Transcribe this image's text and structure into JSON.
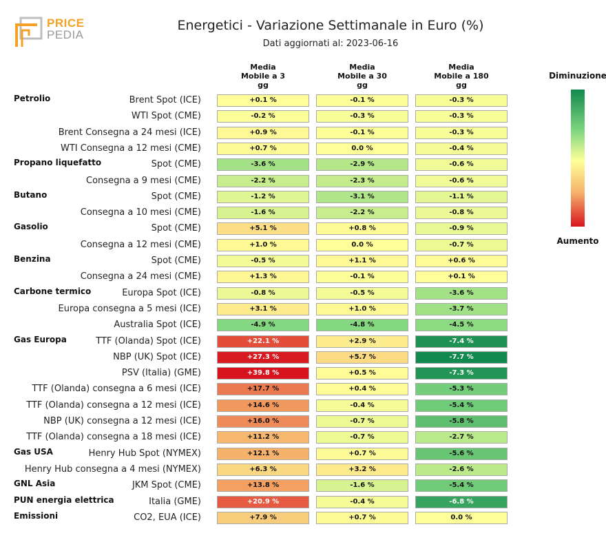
{
  "header": {
    "logo_line1": "PRICE",
    "logo_line2": "PEDIA",
    "title": "Energetici - Variazione Settimanale in Euro (%)",
    "subtitle": "Dati aggiornati al: 2023-06-16"
  },
  "legend": {
    "top_label": "Diminuzione",
    "bottom_label": "Aumento"
  },
  "chart_data": {
    "type": "table",
    "title": "Energetici - Variazione Settimanale in Euro (%)",
    "columns": [
      "Media\nMobile a 3\ngg",
      "Media\nMobile a 30\ngg",
      "Media\nMobile a 180\ngg"
    ],
    "color_scale": {
      "negative_max": "#12894e",
      "neutral": "#ffff99",
      "positive_max": "#d7141e",
      "min": -8,
      "max": 40
    },
    "rows": [
      {
        "group": "Petrolio",
        "label": "Brent Spot (ICE)",
        "values": [
          0.1,
          -0.1,
          -0.3
        ],
        "texts": [
          "+0.1 %",
          "-0.1 %",
          "-0.3 %"
        ]
      },
      {
        "group": "",
        "label": "WTI Spot (CME)",
        "values": [
          -0.2,
          -0.3,
          -0.3
        ],
        "texts": [
          "-0.2 %",
          "-0.3 %",
          "-0.3 %"
        ]
      },
      {
        "group": "",
        "label": "Brent Consegna a 24 mesi (ICE)",
        "values": [
          0.9,
          -0.1,
          -0.3
        ],
        "texts": [
          "+0.9 %",
          "-0.1 %",
          "-0.3 %"
        ]
      },
      {
        "group": "",
        "label": "WTI Consegna a 12 mesi (CME)",
        "values": [
          0.7,
          0.0,
          -0.4
        ],
        "texts": [
          "+0.7 %",
          "0.0 %",
          "-0.4 %"
        ]
      },
      {
        "group": "Propano liquefatto",
        "label": "Spot (CME)",
        "values": [
          -3.6,
          -2.9,
          -0.6
        ],
        "texts": [
          "-3.6 %",
          "-2.9 %",
          "-0.6 %"
        ]
      },
      {
        "group": "",
        "label": "Consegna a 9 mesi (CME)",
        "values": [
          -2.2,
          -2.3,
          -0.6
        ],
        "texts": [
          "-2.2 %",
          "-2.3 %",
          "-0.6 %"
        ]
      },
      {
        "group": "Butano",
        "label": "Spot (CME)",
        "values": [
          -1.2,
          -3.1,
          -1.1
        ],
        "texts": [
          "-1.2 %",
          "-3.1 %",
          "-1.1 %"
        ]
      },
      {
        "group": "",
        "label": "Consegna a 10 mesi (CME)",
        "values": [
          -1.6,
          -2.2,
          -0.8
        ],
        "texts": [
          "-1.6 %",
          "-2.2 %",
          "-0.8 %"
        ]
      },
      {
        "group": "Gasolio",
        "label": "Spot (CME)",
        "values": [
          5.1,
          0.8,
          -0.9
        ],
        "texts": [
          "+5.1 %",
          "+0.8 %",
          "-0.9 %"
        ]
      },
      {
        "group": "",
        "label": "Consegna a 12 mesi (CME)",
        "values": [
          1.0,
          0.0,
          -0.7
        ],
        "texts": [
          "+1.0 %",
          "0.0 %",
          "-0.7 %"
        ]
      },
      {
        "group": "Benzina",
        "label": "Spot (CME)",
        "values": [
          -0.5,
          1.1,
          0.6
        ],
        "texts": [
          "-0.5 %",
          "+1.1 %",
          "+0.6 %"
        ]
      },
      {
        "group": "",
        "label": "Consegna a 24 mesi (CME)",
        "values": [
          1.3,
          -0.1,
          0.1
        ],
        "texts": [
          "+1.3 %",
          "-0.1 %",
          "+0.1 %"
        ]
      },
      {
        "group": "Carbone termico",
        "label": "Europa Spot (ICE)",
        "values": [
          -0.8,
          -0.5,
          -3.6
        ],
        "texts": [
          "-0.8 %",
          "-0.5 %",
          "-3.6 %"
        ]
      },
      {
        "group": "",
        "label": "Europa consegna a 5 mesi (ICE)",
        "values": [
          3.1,
          1.0,
          -3.7
        ],
        "texts": [
          "+3.1 %",
          "+1.0 %",
          "-3.7 %"
        ]
      },
      {
        "group": "",
        "label": "Australia Spot (ICE)",
        "values": [
          -4.9,
          -4.8,
          -4.5
        ],
        "texts": [
          "-4.9 %",
          "-4.8 %",
          "-4.5 %"
        ]
      },
      {
        "group": "Gas Europa",
        "label": "TTF (Olanda) Spot (ICE)",
        "values": [
          22.1,
          2.9,
          -7.4
        ],
        "texts": [
          "+22.1 %",
          "+2.9 %",
          "-7.4 %"
        ]
      },
      {
        "group": "",
        "label": "NBP (UK) Spot (ICE)",
        "values": [
          27.3,
          5.7,
          -7.7
        ],
        "texts": [
          "+27.3 %",
          "+5.7 %",
          "-7.7 %"
        ]
      },
      {
        "group": "",
        "label": "PSV (Italia) (GME)",
        "values": [
          39.8,
          0.5,
          -7.3
        ],
        "texts": [
          "+39.8 %",
          "+0.5 %",
          "-7.3 %"
        ]
      },
      {
        "group": "",
        "label": "TTF (Olanda) consegna a 6 mesi (ICE)",
        "values": [
          17.7,
          0.4,
          -5.3
        ],
        "texts": [
          "+17.7 %",
          "+0.4 %",
          "-5.3 %"
        ]
      },
      {
        "group": "",
        "label": "TTF (Olanda) consegna a 12 mesi (ICE)",
        "values": [
          14.6,
          -0.4,
          -5.4
        ],
        "texts": [
          "+14.6 %",
          "-0.4 %",
          "-5.4 %"
        ]
      },
      {
        "group": "",
        "label": "NBP (UK) consegna a 12 mesi (ICE)",
        "values": [
          16.0,
          -0.7,
          -5.8
        ],
        "texts": [
          "+16.0 %",
          "-0.7 %",
          "-5.8 %"
        ]
      },
      {
        "group": "",
        "label": "TTF (Olanda) consegna a 18 mesi (ICE)",
        "values": [
          11.2,
          -0.7,
          -2.7
        ],
        "texts": [
          "+11.2 %",
          "-0.7 %",
          "-2.7 %"
        ]
      },
      {
        "group": "Gas USA",
        "label": "Henry Hub Spot (NYMEX)",
        "values": [
          12.1,
          0.7,
          -5.6
        ],
        "texts": [
          "+12.1 %",
          "+0.7 %",
          "-5.6 %"
        ]
      },
      {
        "group": "",
        "label": "Henry Hub consegna a 4 mesi (NYMEX)",
        "values": [
          6.3,
          3.2,
          -2.6
        ],
        "texts": [
          "+6.3 %",
          "+3.2 %",
          "-2.6 %"
        ]
      },
      {
        "group": "GNL Asia",
        "label": "JKM Spot (CME)",
        "values": [
          13.8,
          -1.6,
          -5.4
        ],
        "texts": [
          "+13.8 %",
          "-1.6 %",
          "-5.4 %"
        ]
      },
      {
        "group": "PUN energia elettrica",
        "label": "Italia (GME)",
        "values": [
          20.9,
          -0.4,
          -6.8
        ],
        "texts": [
          "+20.9 %",
          "-0.4 %",
          "-6.8 %"
        ]
      },
      {
        "group": "Emissioni",
        "label": "CO2, EUA (ICE)",
        "values": [
          7.9,
          0.7,
          0.0
        ],
        "texts": [
          "+7.9 %",
          "+0.7 %",
          "0.0 %"
        ]
      }
    ]
  }
}
